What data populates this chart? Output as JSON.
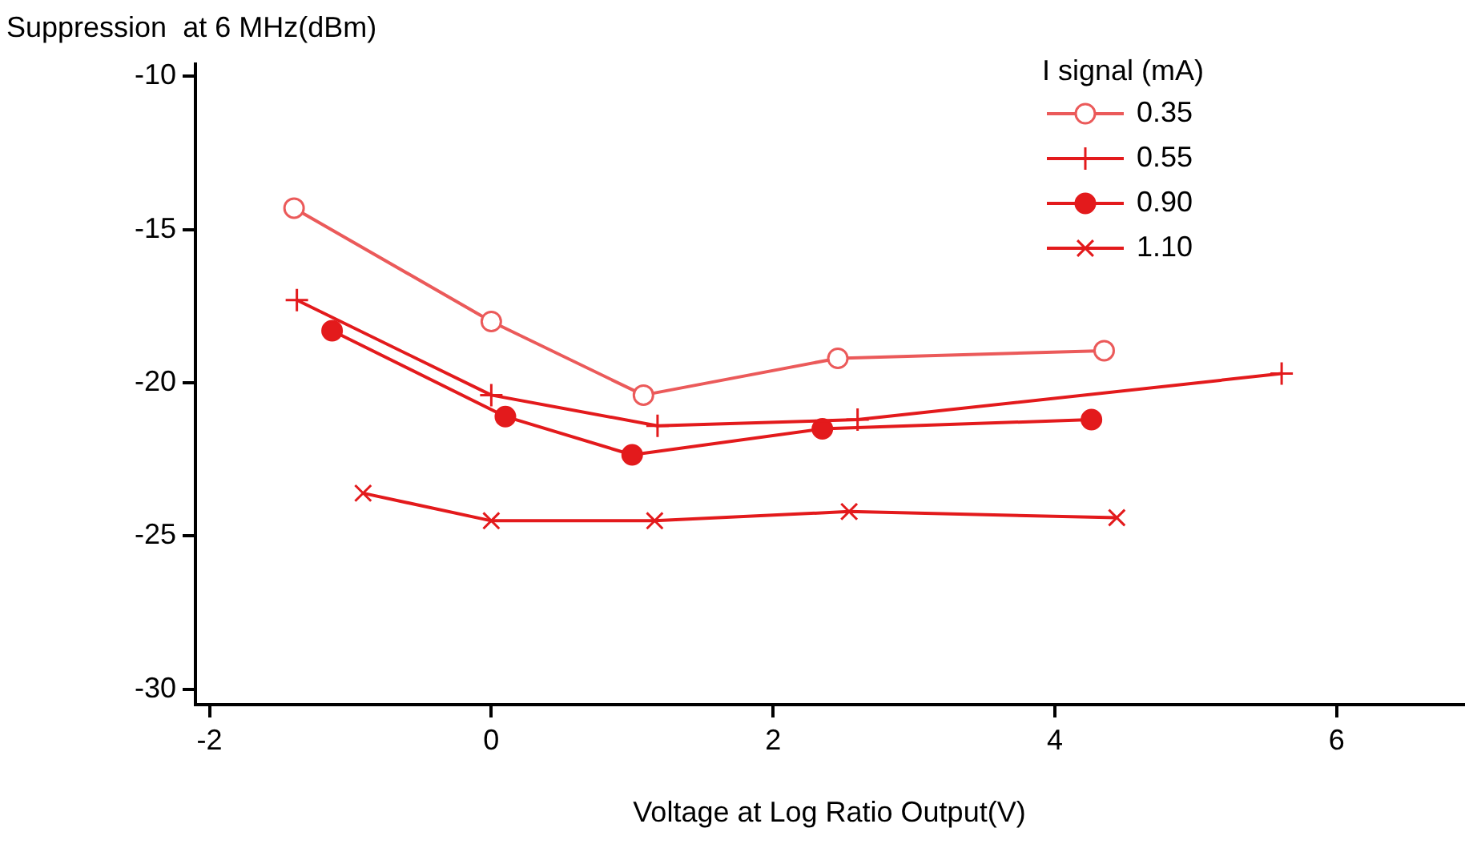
{
  "chart_data": {
    "type": "line",
    "ylabel": "Suppression  at 6 MHz(dBm)",
    "xlabel": "Voltage at Log Ratio Output(V)",
    "legend_title": "I signal (mA)",
    "xlim": [
      -2.1,
      6.9
    ],
    "xticks": [
      -2,
      0,
      2,
      4,
      6
    ],
    "ylim": [
      -30.5,
      -9.6
    ],
    "yticks": [
      -10,
      -15,
      -20,
      -25,
      -30
    ],
    "grid": false,
    "legend": "top right",
    "line_style": "solid",
    "series": [
      {
        "name": "0.35",
        "color": "#eb5a5a",
        "marker": "circle-open",
        "x": [
          -1.4,
          0,
          1.08,
          2.46,
          4.35
        ],
        "values": [
          -14.3,
          -18.0,
          -20.4,
          -19.2,
          -18.95
        ]
      },
      {
        "name": "0.55",
        "color": "#e31a1c",
        "marker": "plus",
        "x": [
          -1.38,
          0,
          1.18,
          2.6,
          5.61
        ],
        "values": [
          -17.3,
          -20.4,
          -21.4,
          -21.2,
          -19.7
        ]
      },
      {
        "name": "0.90",
        "color": "#e31a1c",
        "marker": "circle",
        "x": [
          -1.13,
          0.1,
          1.0,
          2.35,
          4.26
        ],
        "values": [
          -18.3,
          -21.1,
          -22.35,
          -21.5,
          -21.2
        ]
      },
      {
        "name": "1.10",
        "color": "#e31a1c",
        "marker": "cross",
        "x": [
          -0.91,
          0,
          1.16,
          2.54,
          4.44
        ],
        "values": [
          -23.6,
          -24.5,
          -24.5,
          -24.2,
          -24.4
        ]
      }
    ]
  }
}
